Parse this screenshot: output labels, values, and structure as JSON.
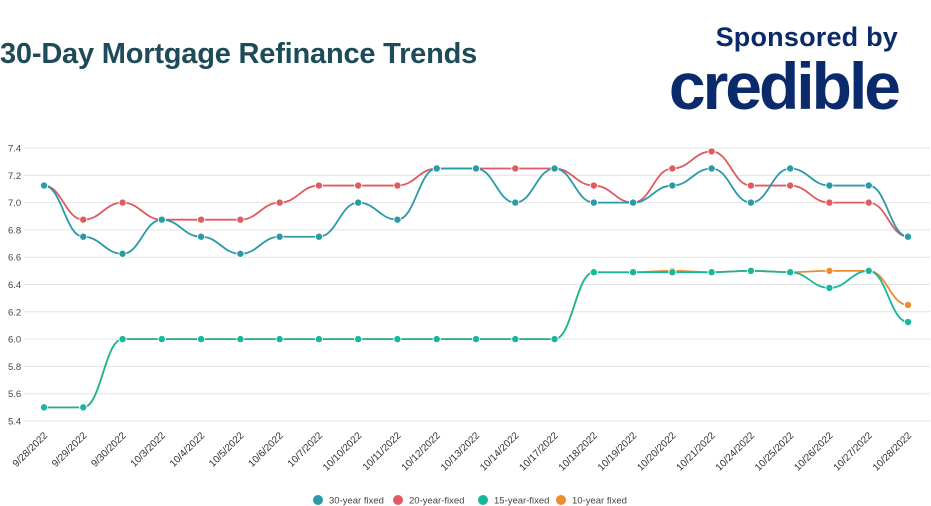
{
  "header": {
    "title": "30-Day Mortgage Refinance Trends",
    "sponsor_label": "Sponsored by",
    "sponsor_logo": "credible"
  },
  "colors": {
    "title": "#1d4b57",
    "sponsor": "#0b2a6b",
    "grid": "#e2e2e2"
  },
  "chart_data": {
    "type": "line",
    "title": "30-Day Mortgage Refinance Trends",
    "xlabel": "",
    "ylabel": "",
    "ylim": [
      5.4,
      7.4
    ],
    "yticks": [
      "5.4",
      "5.6",
      "5.8",
      "6.0",
      "6.2",
      "6.4",
      "6.6",
      "6.8",
      "7.0",
      "7.2",
      "7.4"
    ],
    "grid": true,
    "legend": "bottom",
    "categories": [
      "9/28/2022",
      "9/29/2022",
      "9/30/2022",
      "10/3/2022",
      "10/4/2022",
      "10/5/2022",
      "10/6/2022",
      "10/7/2022",
      "10/10/2022",
      "10/11/2022",
      "10/12/2022",
      "10/13/2022",
      "10/14/2022",
      "10/17/2022",
      "10/18/2022",
      "10/19/2022",
      "10/20/2022",
      "10/21/2022",
      "10/24/2022",
      "10/25/2022",
      "10/26/2022",
      "10/27/2022",
      "10/28/2022"
    ],
    "series": [
      {
        "name": "30-year fixed",
        "color": "#2a9aa6",
        "values": [
          7.125,
          6.75,
          6.625,
          6.875,
          6.75,
          6.625,
          6.75,
          6.75,
          7.0,
          6.875,
          7.25,
          7.25,
          7.0,
          7.25,
          7.0,
          7.0,
          7.125,
          7.25,
          7.0,
          7.25,
          7.125,
          7.125,
          6.75
        ]
      },
      {
        "name": "20-year-fixed",
        "color": "#e05a62",
        "values": [
          7.125,
          6.875,
          7.0,
          6.875,
          6.875,
          6.875,
          7.0,
          7.125,
          7.125,
          7.125,
          7.25,
          7.25,
          7.25,
          7.25,
          7.125,
          7.0,
          7.25,
          7.375,
          7.125,
          7.125,
          7.0,
          7.0,
          6.75
        ]
      },
      {
        "name": "15-year-fixed",
        "color": "#16b79b",
        "values": [
          5.5,
          5.5,
          6.0,
          6.0,
          6.0,
          6.0,
          6.0,
          6.0,
          6.0,
          6.0,
          6.0,
          6.0,
          6.0,
          6.0,
          6.49,
          6.49,
          6.49,
          6.49,
          6.5,
          6.49,
          6.375,
          6.5,
          6.125
        ]
      },
      {
        "name": "10-year fixed",
        "color": "#ee8a2f",
        "values": [
          5.5,
          5.5,
          6.0,
          6.0,
          6.0,
          6.0,
          6.0,
          6.0,
          6.0,
          6.0,
          6.0,
          6.0,
          6.0,
          6.0,
          6.49,
          6.49,
          6.5,
          6.49,
          6.5,
          6.49,
          6.5,
          6.5,
          6.25
        ]
      }
    ]
  }
}
